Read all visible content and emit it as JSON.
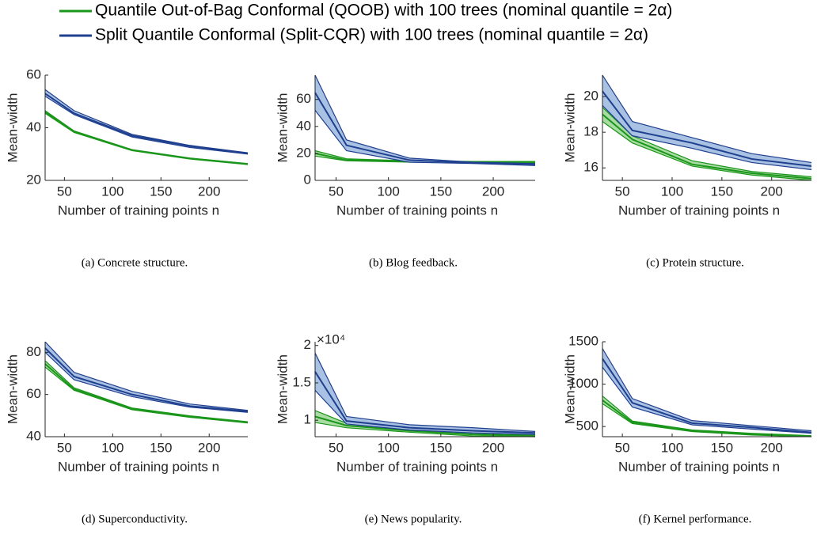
{
  "chart_data": [
    {
      "type": "band-line",
      "caption": "(a) Concrete structure.",
      "xlabel": "Number of training points n",
      "ylabel": "Mean-width",
      "x": [
        30,
        60,
        120,
        180,
        240
      ],
      "xlim": [
        30,
        240
      ],
      "xticks": [
        50,
        100,
        150,
        200
      ],
      "ylim": [
        20,
        60
      ],
      "yticks": [
        20,
        40,
        60
      ],
      "series": [
        {
          "name": "Quantile Out-of-Bag Conformal (QOOB) with 100 trees (nominal quantile = 2α)",
          "color": "#1a961a",
          "band_color": "#a9dca3",
          "values": [
            46,
            38.5,
            31.5,
            28.3,
            26.2
          ],
          "lower": [
            45.5,
            38.2,
            31.3,
            28.1,
            26
          ],
          "upper": [
            46.5,
            38.8,
            31.7,
            28.5,
            26.4
          ]
        },
        {
          "name": "Split Quantile Conformal (Split-CQR) with 100 trees (nominal quantile = 2α)",
          "color": "#1f3f8f",
          "band_color": "#a9c1e3",
          "values": [
            53,
            45.5,
            37,
            33,
            30.2
          ],
          "lower": [
            52,
            45,
            36.5,
            32.5,
            30
          ],
          "upper": [
            54.5,
            46.5,
            37.5,
            33.3,
            30.5
          ]
        }
      ]
    },
    {
      "type": "band-line",
      "caption": "(b) Blog feedback.",
      "xlabel": "Number of training points n",
      "ylabel": "Mean-width",
      "x": [
        30,
        60,
        120,
        180,
        240
      ],
      "xlim": [
        30,
        240
      ],
      "xticks": [
        50,
        100,
        150,
        200
      ],
      "ylim": [
        0,
        78
      ],
      "yticks": [
        0,
        20,
        40,
        60
      ],
      "series": [
        {
          "color": "#1a961a",
          "band_color": "#a9dca3",
          "values": [
            20,
            15,
            14,
            13.5,
            13.5
          ],
          "lower": [
            18,
            14.5,
            13.5,
            13,
            13
          ],
          "upper": [
            22,
            16,
            14.5,
            14,
            14
          ]
        },
        {
          "color": "#1f3f8f",
          "band_color": "#a9c1e3",
          "values": [
            65,
            26,
            15,
            13,
            12
          ],
          "lower": [
            52,
            22,
            13.5,
            12.5,
            11
          ],
          "upper": [
            78,
            30,
            16.5,
            13.5,
            12.5
          ]
        }
      ]
    },
    {
      "type": "band-line",
      "caption": "(c) Protein structure.",
      "xlabel": "Number of training points n",
      "ylabel": "Mean-width",
      "x": [
        30,
        60,
        120,
        180,
        240
      ],
      "xlim": [
        30,
        240
      ],
      "xticks": [
        50,
        100,
        150,
        200
      ],
      "ylim": [
        15.3,
        21.2
      ],
      "yticks": [
        16,
        18,
        20
      ],
      "series": [
        {
          "color": "#1a961a",
          "band_color": "#a9dca3",
          "values": [
            19,
            17.6,
            16.2,
            15.7,
            15.4
          ],
          "lower": [
            18.6,
            17.4,
            16.1,
            15.6,
            15.3
          ],
          "upper": [
            19.4,
            17.8,
            16.4,
            15.8,
            15.5
          ]
        },
        {
          "color": "#1f3f8f",
          "band_color": "#a9c1e3",
          "values": [
            20.3,
            18.1,
            17.4,
            16.5,
            16.1
          ],
          "lower": [
            19.5,
            17.8,
            17.1,
            16.3,
            15.9
          ],
          "upper": [
            21.2,
            18.6,
            17.7,
            16.8,
            16.3
          ]
        }
      ]
    },
    {
      "type": "band-line",
      "caption": "(d) Superconductivity.",
      "xlabel": "Number of training points n",
      "ylabel": "Mean-width",
      "x": [
        30,
        60,
        120,
        180,
        240
      ],
      "xlim": [
        30,
        240
      ],
      "xticks": [
        50,
        100,
        150,
        200
      ],
      "ylim": [
        40,
        85
      ],
      "yticks": [
        40,
        60,
        80
      ],
      "series": [
        {
          "color": "#1a961a",
          "band_color": "#a9dca3",
          "values": [
            74.5,
            62.5,
            53.2,
            49.5,
            46.8
          ],
          "lower": [
            73,
            62,
            52.8,
            49.2,
            46.5
          ],
          "upper": [
            76,
            63.2,
            53.6,
            49.9,
            47.1
          ]
        },
        {
          "color": "#1f3f8f",
          "band_color": "#a9c1e3",
          "values": [
            82,
            68.5,
            60,
            54.5,
            52
          ],
          "lower": [
            80,
            67,
            59,
            54,
            51.5
          ],
          "upper": [
            85,
            70.5,
            61.5,
            55.5,
            52.5
          ]
        }
      ]
    },
    {
      "type": "band-line",
      "caption": "(e) News popularity.",
      "xlabel": "Number of training points n",
      "ylabel": "Mean-width",
      "exponent_label": "×10⁴",
      "x": [
        30,
        60,
        120,
        180,
        240
      ],
      "xlim": [
        30,
        240
      ],
      "xticks": [
        50,
        100,
        150,
        200
      ],
      "ylim": [
        7800,
        20500
      ],
      "yticks": [
        {
          "value": 10000,
          "label": "1"
        },
        {
          "value": 15000,
          "label": "1.5"
        },
        {
          "value": 20000,
          "label": "2"
        }
      ],
      "series": [
        {
          "color": "#1a961a",
          "band_color": "#a9dca3",
          "values": [
            10500,
            9300,
            8600,
            8100,
            7900
          ],
          "lower": [
            9700,
            9000,
            8400,
            7900,
            7800
          ],
          "upper": [
            11300,
            9600,
            8800,
            8300,
            8000
          ]
        },
        {
          "color": "#1f3f8f",
          "band_color": "#a9c1e3",
          "values": [
            16500,
            9900,
            9000,
            8600,
            8300
          ],
          "lower": [
            14000,
            9500,
            8700,
            8300,
            8100
          ],
          "upper": [
            19000,
            10500,
            9400,
            9000,
            8500
          ]
        }
      ]
    },
    {
      "type": "band-line",
      "caption": "(f) Kernel performance.",
      "xlabel": "Number of training points n",
      "ylabel": "Mean-width",
      "x": [
        30,
        60,
        120,
        180,
        240
      ],
      "xlim": [
        30,
        240
      ],
      "xticks": [
        50,
        100,
        150,
        200
      ],
      "ylim": [
        380,
        1500
      ],
      "yticks": [
        500,
        1000,
        1500
      ],
      "series": [
        {
          "color": "#1a961a",
          "band_color": "#a9dca3",
          "values": [
            810,
            550,
            450,
            410,
            385
          ],
          "lower": [
            770,
            535,
            440,
            400,
            380
          ],
          "upper": [
            860,
            565,
            460,
            420,
            392
          ]
        },
        {
          "color": "#1f3f8f",
          "band_color": "#a9c1e3",
          "values": [
            1300,
            780,
            540,
            490,
            430
          ],
          "lower": [
            1200,
            730,
            520,
            470,
            420
          ],
          "upper": [
            1420,
            830,
            570,
            510,
            450
          ]
        }
      ]
    }
  ]
}
